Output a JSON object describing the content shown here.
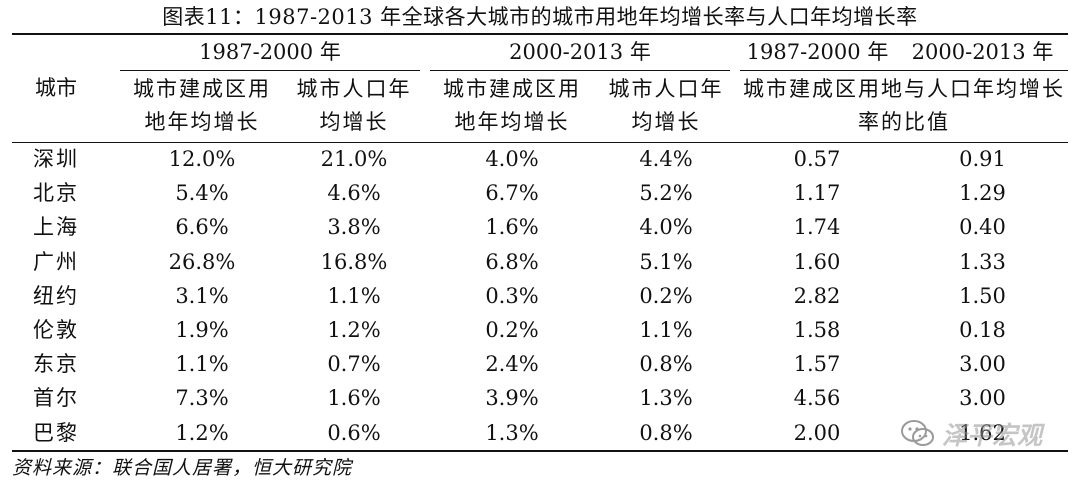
{
  "title": "图表11：1987-2013 年全球各大城市的城市用地年均增长率与人口年均增长率",
  "header": {
    "city": "城市",
    "period_1": "1987-2000 年",
    "period_2": "2000-2013 年",
    "ratio_period_1": "1987-2000 年",
    "ratio_period_2": "2000-2013 年",
    "land_growth": "城市建成区用地年均增长",
    "pop_growth": "城市人口年均增长",
    "ratio": "城市建成区用地与人口年均增长率的比值"
  },
  "rows": [
    {
      "city": "深圳",
      "land_1": "12.0%",
      "pop_1": "21.0%",
      "land_2": "4.0%",
      "pop_2": "4.4%",
      "ratio_1": "0.57",
      "ratio_2": "0.91"
    },
    {
      "city": "北京",
      "land_1": "5.4%",
      "pop_1": "4.6%",
      "land_2": "6.7%",
      "pop_2": "5.2%",
      "ratio_1": "1.17",
      "ratio_2": "1.29"
    },
    {
      "city": "上海",
      "land_1": "6.6%",
      "pop_1": "3.8%",
      "land_2": "1.6%",
      "pop_2": "4.0%",
      "ratio_1": "1.74",
      "ratio_2": "0.40"
    },
    {
      "city": "广州",
      "land_1": "26.8%",
      "pop_1": "16.8%",
      "land_2": "6.8%",
      "pop_2": "5.1%",
      "ratio_1": "1.60",
      "ratio_2": "1.33"
    },
    {
      "city": "纽约",
      "land_1": "3.1%",
      "pop_1": "1.1%",
      "land_2": "0.3%",
      "pop_2": "0.2%",
      "ratio_1": "2.82",
      "ratio_2": "1.50"
    },
    {
      "city": "伦敦",
      "land_1": "1.9%",
      "pop_1": "1.2%",
      "land_2": "0.2%",
      "pop_2": "1.1%",
      "ratio_1": "1.58",
      "ratio_2": "0.18"
    },
    {
      "city": "东京",
      "land_1": "1.1%",
      "pop_1": "0.7%",
      "land_2": "2.4%",
      "pop_2": "0.8%",
      "ratio_1": "1.57",
      "ratio_2": "3.00"
    },
    {
      "city": "首尔",
      "land_1": "7.3%",
      "pop_1": "1.6%",
      "land_2": "3.9%",
      "pop_2": "1.3%",
      "ratio_1": "4.56",
      "ratio_2": "3.00"
    },
    {
      "city": "巴黎",
      "land_1": "1.2%",
      "pop_1": "0.6%",
      "land_2": "1.3%",
      "pop_2": "0.8%",
      "ratio_1": "2.00",
      "ratio_2": "1.62"
    }
  ],
  "source": "资料来源：联合国人居署，恒大研究院",
  "watermark": {
    "text": "泽平宏观",
    "icon": "wechat-icon",
    "color": "#9a9a9a"
  }
}
